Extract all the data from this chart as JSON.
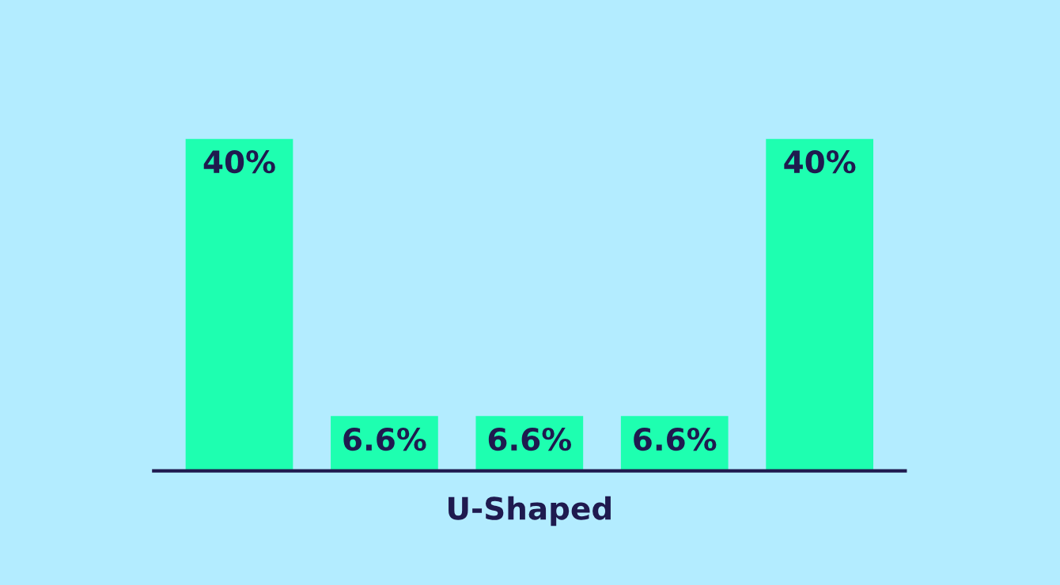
{
  "chart_data": {
    "type": "bar",
    "xlabel": "U-Shaped",
    "categories": [
      null,
      null,
      null,
      null,
      null
    ],
    "values": [
      40,
      6.6,
      6.6,
      6.6,
      40
    ],
    "value_labels": [
      "40%",
      "6.6%",
      "6.6%",
      "6.6%",
      "40%"
    ],
    "color": "#1effb0",
    "grid": false
  }
}
